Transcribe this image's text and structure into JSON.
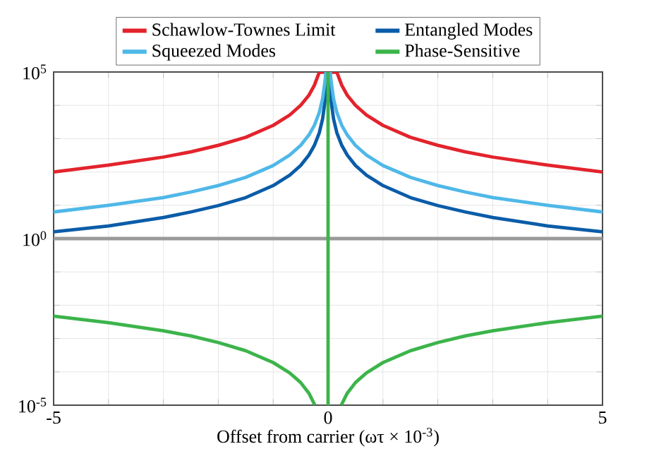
{
  "chart_data": {
    "type": "line",
    "xlabel": "Offset from carrier (ωτ × 10$^{-3}$)",
    "log": "y",
    "grid": true,
    "legend": "top",
    "line_style": "solid",
    "marker": "none",
    "xlim": [
      -5,
      5
    ],
    "ylim": [
      1e-05,
      100000
    ],
    "xticks": [
      -5,
      {
        "value": -4,
        "label": null
      },
      {
        "value": -3,
        "label": null
      },
      {
        "value": -2,
        "label": null
      },
      {
        "value": -1,
        "label": null
      },
      0,
      {
        "value": 1,
        "label": null
      },
      {
        "value": 2,
        "label": null
      },
      {
        "value": 3,
        "label": null
      },
      {
        "value": 4,
        "label": null
      },
      5
    ],
    "yticks": [
      {
        "value": 1e-05,
        "label": "10$^{-5}$"
      },
      {
        "value": 0.0001,
        "label": null
      },
      {
        "value": 0.001,
        "label": null
      },
      {
        "value": 0.01,
        "label": null
      },
      {
        "value": 0.1,
        "label": null
      },
      {
        "value": 1,
        "label": "10$^{0}$"
      },
      {
        "value": 10,
        "label": null
      },
      {
        "value": 100,
        "label": null
      },
      {
        "value": 1000,
        "label": null
      },
      {
        "value": 10000,
        "label": null
      },
      {
        "value": 100000,
        "label": "10$^{5}$"
      }
    ],
    "ref_lines": [
      {
        "axis": "y",
        "value": 1,
        "color": "#9a9a9a"
      }
    ],
    "series": [
      {
        "name": "Schawlow-Townes Limit",
        "color": "#e3232c",
        "x": [
          -5,
          -4,
          -3,
          -2.5,
          -2,
          -1.5,
          -1,
          -0.7,
          -0.5,
          -0.35,
          -0.25,
          -0.16,
          0.16,
          0.25,
          0.35,
          0.5,
          0.7,
          1,
          1.5,
          2,
          2.5,
          3,
          4,
          5
        ],
        "values": [
          100,
          160,
          280,
          400,
          630,
          1100,
          2500,
          5100,
          10000,
          20000,
          40000,
          98000,
          98000,
          40000,
          20000,
          10000,
          5100,
          2500,
          1100,
          630,
          400,
          280,
          160,
          100
        ]
      },
      {
        "name": "Entangled Modes",
        "color": "#0a5ca8",
        "x": [
          -5,
          -4,
          -3,
          -2.5,
          -2,
          -1.5,
          -1,
          -0.7,
          -0.5,
          -0.35,
          -0.25,
          -0.16,
          -0.1,
          -0.05,
          -0.02,
          0.02,
          0.05,
          0.1,
          0.16,
          0.25,
          0.35,
          0.5,
          0.7,
          1,
          1.5,
          2,
          2.5,
          3,
          4,
          5
        ],
        "values": [
          1.6,
          2.4,
          4.3,
          6.3,
          9.8,
          17,
          39,
          80,
          156,
          320,
          625,
          1500,
          3900,
          15600,
          100000,
          100000,
          15600,
          3900,
          1500,
          625,
          320,
          156,
          80,
          39,
          17,
          9.8,
          6.3,
          4.3,
          2.4,
          1.6
        ]
      },
      {
        "name": "Squeezed Modes",
        "color": "#4fb8e8",
        "x": [
          -5,
          -4,
          -3,
          -2.5,
          -2,
          -1.5,
          -1,
          -0.7,
          -0.5,
          -0.35,
          -0.25,
          -0.16,
          -0.1,
          -0.05,
          -0.04,
          0.04,
          0.05,
          0.1,
          0.16,
          0.25,
          0.35,
          0.5,
          0.7,
          1,
          1.5,
          2,
          2.5,
          3,
          4,
          5
        ],
        "values": [
          6.3,
          10,
          17,
          25,
          39,
          69,
          156,
          320,
          625,
          1280,
          2500,
          6100,
          15600,
          62500,
          100000,
          100000,
          62500,
          15600,
          6100,
          2500,
          1280,
          625,
          320,
          156,
          69,
          39,
          25,
          17,
          10,
          6.3
        ]
      },
      {
        "name": "Phase-Sensitive",
        "color": "#3cb44b",
        "x": [
          -5,
          -4,
          -3,
          -2.5,
          -2,
          -1.5,
          -1,
          -0.7,
          -0.5,
          -0.35,
          -0.24,
          null,
          0,
          0,
          null,
          0.24,
          0.35,
          0.5,
          0.7,
          1,
          1.5,
          2,
          2.5,
          3,
          4,
          5
        ],
        "values": [
          0.0047,
          0.003,
          0.0017,
          0.0012,
          0.00076,
          0.00043,
          0.00019,
          9.3e-05,
          4.8e-05,
          2.3e-05,
          1e-05,
          null,
          1e-05,
          100000,
          null,
          1e-05,
          2.3e-05,
          4.8e-05,
          9.3e-05,
          0.00019,
          0.00043,
          0.00076,
          0.0012,
          0.0017,
          0.003,
          0.0047
        ]
      }
    ]
  }
}
